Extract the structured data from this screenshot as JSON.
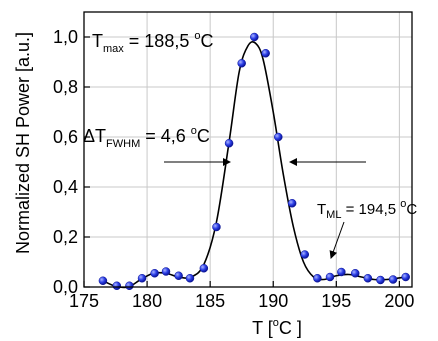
{
  "chart_data": {
    "type": "scatter",
    "xlabel": {
      "main": "T [",
      "sup": "o",
      "after": "C ]"
    },
    "ylabel": "Normalized SH Power [a.u.]",
    "xlim": [
      175,
      201
    ],
    "ylim": [
      0,
      1.1
    ],
    "x_ticks": [
      175,
      180,
      185,
      190,
      195,
      200
    ],
    "y_ticks": [
      0,
      0.2,
      0.4,
      0.6,
      0.8,
      1.0
    ],
    "x_tick_labels": [
      "175",
      "180",
      "185",
      "190",
      "195",
      "200"
    ],
    "y_tick_labels": [
      "0,0",
      "0,2",
      "0,4",
      "0,6",
      "0,8",
      "1,0"
    ],
    "grid": true,
    "marker_color": "#2b3ee6",
    "line_color": "#000000",
    "series": [
      {
        "points": [
          [
            176.5,
            0.025
          ],
          [
            177.6,
            0.005
          ],
          [
            178.6,
            0.005
          ],
          [
            179.6,
            0.035
          ],
          [
            180.6,
            0.055
          ],
          [
            181.5,
            0.062
          ],
          [
            182.5,
            0.045
          ],
          [
            183.4,
            0.035
          ],
          [
            184.5,
            0.075
          ],
          [
            185.5,
            0.24
          ],
          [
            186.5,
            0.575
          ],
          [
            187.5,
            0.895
          ],
          [
            188.5,
            1.0
          ],
          [
            189.4,
            0.935
          ],
          [
            190.4,
            0.6
          ],
          [
            191.5,
            0.335
          ],
          [
            192.5,
            0.13
          ],
          [
            193.5,
            0.035
          ],
          [
            194.5,
            0.04
          ],
          [
            195.4,
            0.06
          ],
          [
            196.5,
            0.055
          ],
          [
            197.5,
            0.035
          ],
          [
            198.5,
            0.028
          ],
          [
            199.5,
            0.03
          ],
          [
            200.5,
            0.04
          ]
        ],
        "fit": [
          [
            176.5,
            0.025
          ],
          [
            177.5,
            0.003
          ],
          [
            178.5,
            0.0
          ],
          [
            179.5,
            0.03
          ],
          [
            180.5,
            0.055
          ],
          [
            181.5,
            0.055
          ],
          [
            182.5,
            0.04
          ],
          [
            183.5,
            0.04
          ],
          [
            184.5,
            0.09
          ],
          [
            185.5,
            0.26
          ],
          [
            186.5,
            0.58
          ],
          [
            187.3,
            0.86
          ],
          [
            188.0,
            0.965
          ],
          [
            188.6,
            0.975
          ],
          [
            189.2,
            0.91
          ],
          [
            190.0,
            0.7
          ],
          [
            190.8,
            0.45
          ],
          [
            191.6,
            0.24
          ],
          [
            192.4,
            0.1
          ],
          [
            193.2,
            0.04
          ],
          [
            194.0,
            0.03
          ],
          [
            195.0,
            0.045
          ],
          [
            196.0,
            0.05
          ],
          [
            197.0,
            0.04
          ],
          [
            198.0,
            0.03
          ],
          [
            199.0,
            0.03
          ],
          [
            200.5,
            0.04
          ]
        ]
      }
    ],
    "annotations": {
      "tmax": {
        "main": "T",
        "sub": "max",
        "value": " = 188,5 ",
        "sup": "o",
        "unit": "C"
      },
      "fwhm": {
        "main": "ΔT",
        "sub": "FWHM",
        "value": " = 4,6 ",
        "sup": "o",
        "unit": "C"
      },
      "tml": {
        "main": "T",
        "sub": "ML",
        "value": " = 194,5 ",
        "sup": "o",
        "unit": "C"
      }
    }
  }
}
